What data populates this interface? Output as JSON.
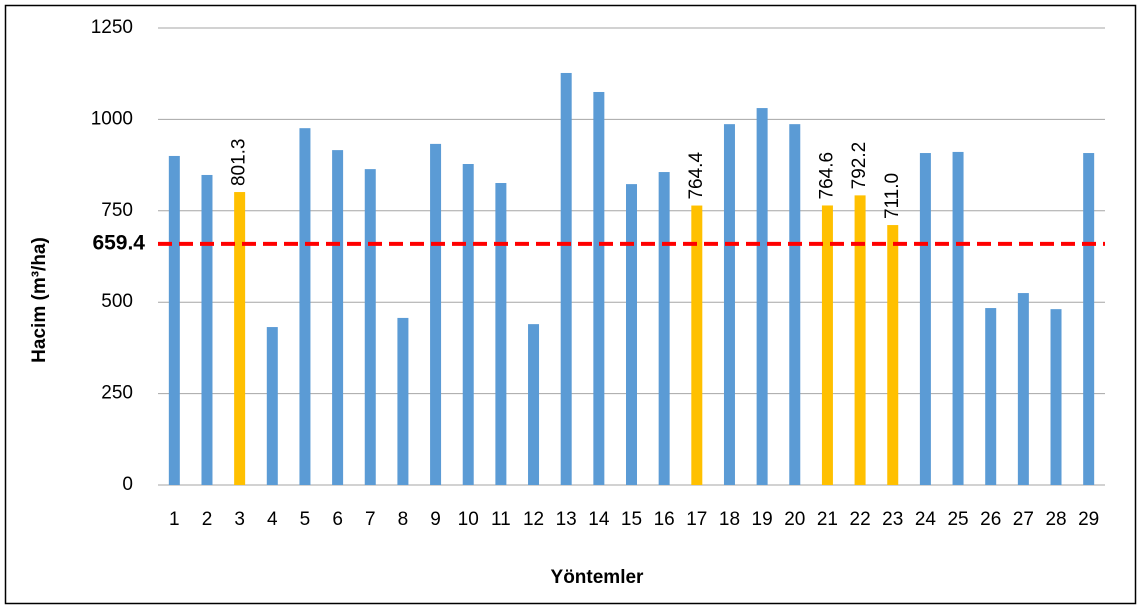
{
  "chart_data": {
    "type": "bar",
    "x_label": "Yöntemler",
    "y_label": "Hacim (m³/ha)",
    "categories": [
      "1",
      "2",
      "3",
      "4",
      "5",
      "6",
      "7",
      "8",
      "9",
      "10",
      "11",
      "12",
      "13",
      "14",
      "15",
      "16",
      "17",
      "18",
      "19",
      "20",
      "21",
      "22",
      "23",
      "24",
      "25",
      "26",
      "27",
      "28",
      "29"
    ],
    "values": [
      900,
      848,
      801.3,
      432,
      976,
      916,
      864,
      457,
      933,
      878,
      826,
      440,
      1127,
      1075,
      823,
      856,
      764.4,
      987,
      1031,
      987,
      764.6,
      792.2,
      711.0,
      908,
      911,
      484,
      525,
      481,
      908
    ],
    "value_labels": [
      null,
      null,
      "801.3",
      null,
      null,
      null,
      null,
      null,
      null,
      null,
      null,
      null,
      null,
      null,
      null,
      null,
      "764.4",
      null,
      null,
      null,
      "764.6",
      "792.2",
      "711.0",
      null,
      null,
      null,
      null,
      null,
      null
    ],
    "colors": [
      "#5b9bd5",
      "#5b9bd5",
      "#ffc000",
      "#5b9bd5",
      "#5b9bd5",
      "#5b9bd5",
      "#5b9bd5",
      "#5b9bd5",
      "#5b9bd5",
      "#5b9bd5",
      "#5b9bd5",
      "#5b9bd5",
      "#5b9bd5",
      "#5b9bd5",
      "#5b9bd5",
      "#5b9bd5",
      "#ffc000",
      "#5b9bd5",
      "#5b9bd5",
      "#5b9bd5",
      "#ffc000",
      "#ffc000",
      "#ffc000",
      "#5b9bd5",
      "#5b9bd5",
      "#5b9bd5",
      "#5b9bd5",
      "#5b9bd5",
      "#5b9bd5"
    ],
    "reference_line": 659.4,
    "reference_color": "#ff0000",
    "ylim": [
      0,
      1250
    ],
    "yticks": [
      0,
      250,
      500,
      750,
      1000,
      1250
    ],
    "grid": true
  }
}
